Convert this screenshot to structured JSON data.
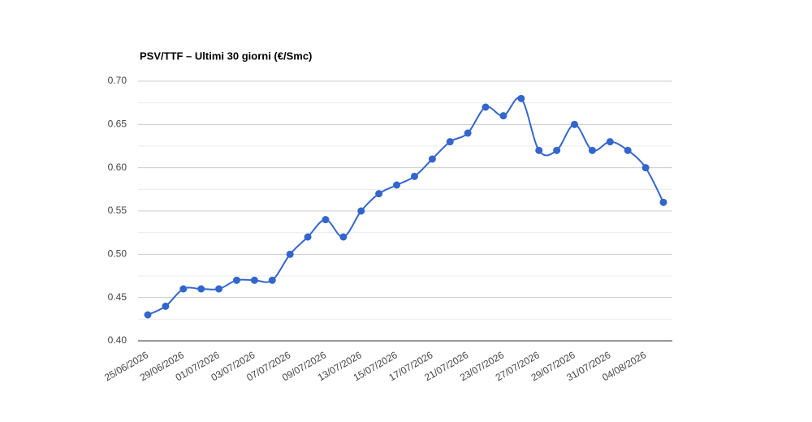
{
  "chart_data": {
    "type": "line",
    "title": "PSV/TTF – Ultimi 30 giorni (€/Smc)",
    "categories": [
      "25/06/2026",
      null,
      "29/06/2026",
      null,
      "01/07/2026",
      null,
      "03/07/2026",
      null,
      "07/07/2026",
      null,
      "09/07/2026",
      null,
      "13/07/2026",
      null,
      "15/07/2026",
      null,
      "17/07/2026",
      null,
      "21/07/2026",
      null,
      "23/07/2026",
      null,
      "27/07/2026",
      null,
      "29/07/2026",
      null,
      "31/07/2026",
      null,
      "04/08/2026",
      null
    ],
    "series": [
      {
        "color": "#3366cc",
        "values": [
          0.43,
          0.44,
          0.46,
          0.46,
          0.46,
          0.47,
          0.47,
          0.47,
          0.5,
          0.52,
          0.54,
          0.52,
          0.55,
          0.57,
          0.58,
          0.59,
          0.61,
          0.63,
          0.64,
          0.67,
          0.66,
          0.68,
          0.62,
          0.62,
          0.65,
          0.62,
          0.63,
          0.62,
          0.6,
          0.56
        ]
      }
    ],
    "ylim": [
      0.4,
      0.7
    ],
    "yticks": [
      {
        "value": 0.4,
        "label": "0.40"
      },
      {
        "value": 0.45,
        "label": "0.45"
      },
      {
        "value": 0.5,
        "label": "0.50"
      },
      {
        "value": 0.55,
        "label": "0.55"
      },
      {
        "value": 0.6,
        "label": "0.60"
      },
      {
        "value": 0.65,
        "label": "0.65"
      },
      {
        "value": 0.7,
        "label": "0.70"
      }
    ],
    "grid": true,
    "minor_grid": true,
    "smooth": true
  }
}
